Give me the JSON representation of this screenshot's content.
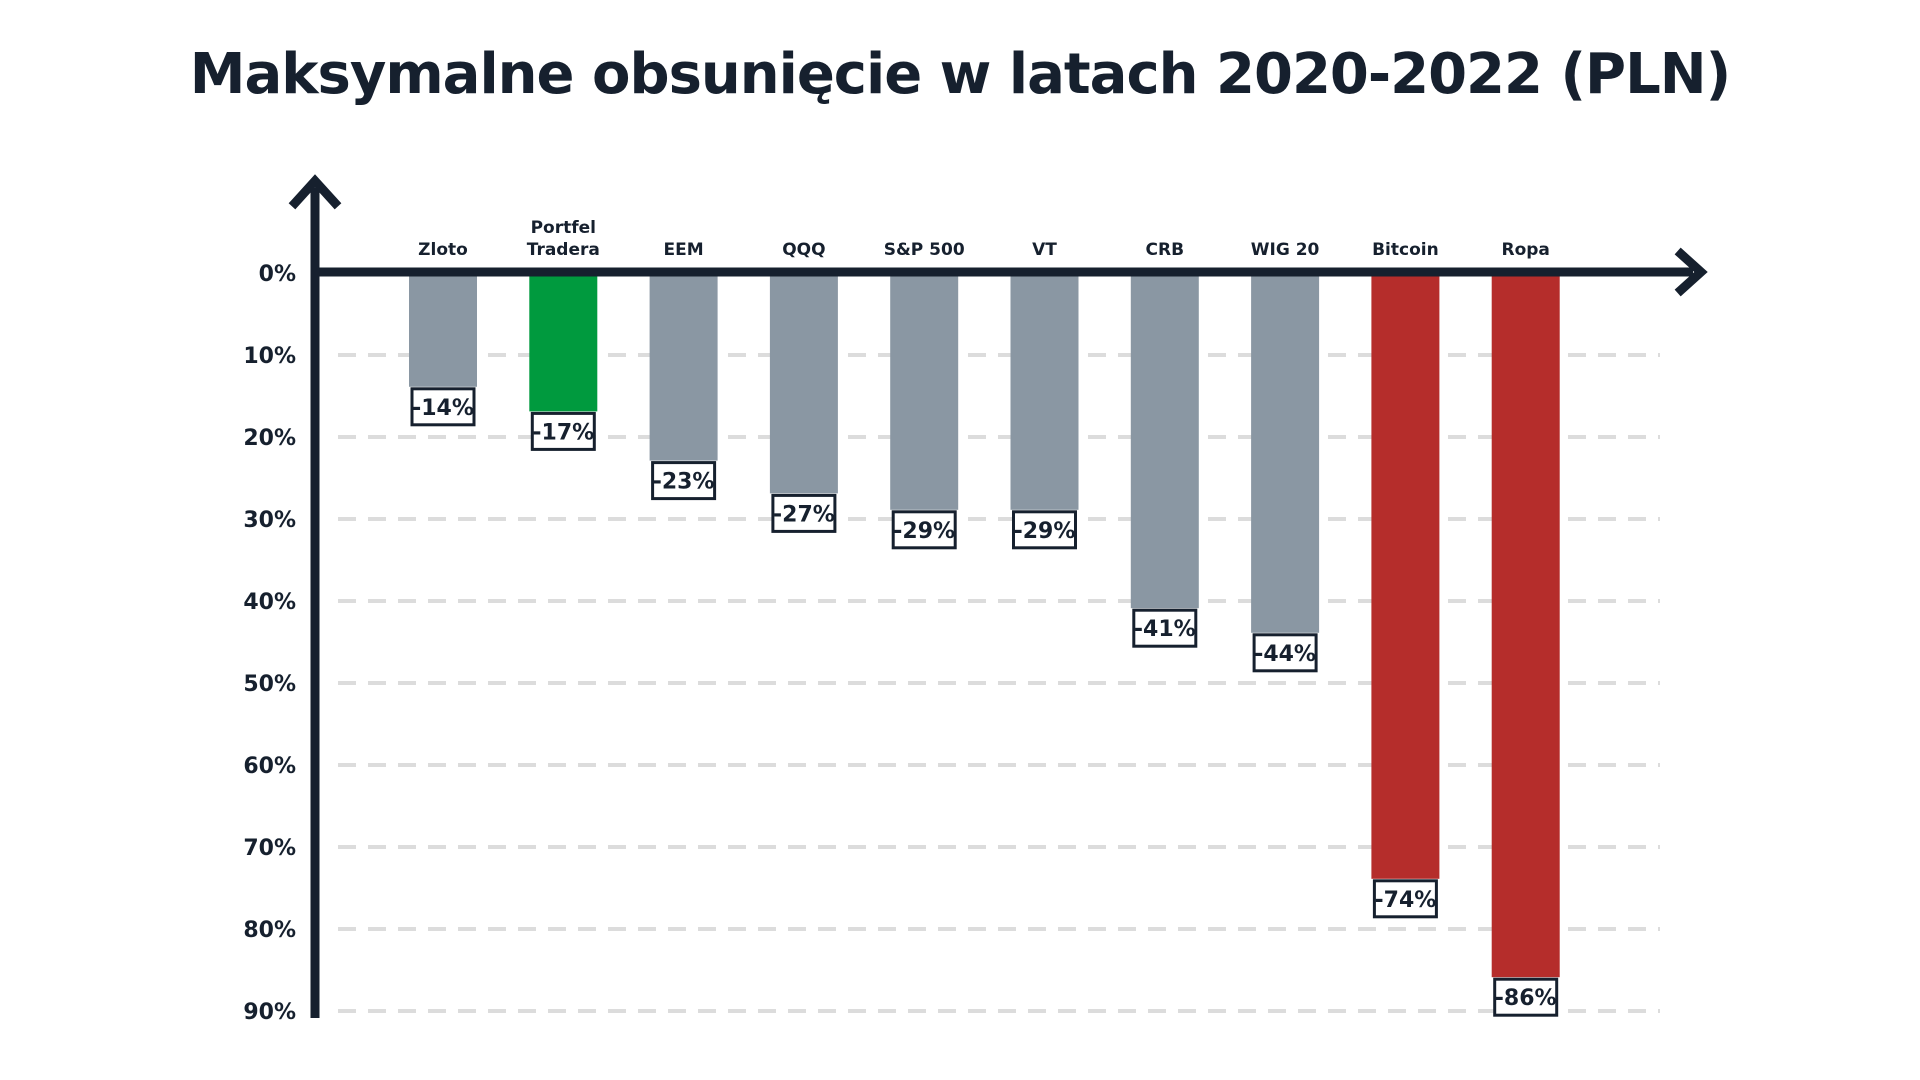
{
  "chart_data": {
    "type": "bar",
    "title": "Maksymalne obsunięcie w latach 2020-2022 (PLN)",
    "xlabel": "",
    "ylabel": "",
    "categories": [
      "Zloto",
      "Portfel\nTradera",
      "EEM",
      "QQQ",
      "S&P 500",
      "VT",
      "CRB",
      "WIG 20",
      "Bitcoin",
      "Ropa"
    ],
    "values": [
      -14,
      -17,
      -23,
      -27,
      -29,
      -29,
      -41,
      -44,
      -74,
      -86
    ],
    "value_labels": [
      "-14%",
      "-17%",
      "-23%",
      "-27%",
      "-29%",
      "-29%",
      "-41%",
      "-44%",
      "-74%",
      "-86%"
    ],
    "bar_colors": [
      "#8a97a3",
      "#009a3e",
      "#8a97a3",
      "#8a97a3",
      "#8a97a3",
      "#8a97a3",
      "#8a97a3",
      "#8a97a3",
      "#b52d2b",
      "#b52d2b"
    ],
    "y_tick_labels": [
      "0%",
      "10%",
      "20%",
      "30%",
      "40%",
      "50%",
      "60%",
      "70%",
      "80%",
      "90%"
    ],
    "y_tick_values": [
      0,
      10,
      20,
      30,
      40,
      50,
      60,
      70,
      80,
      90
    ],
    "ylim": [
      0,
      90
    ],
    "y_inverted": true,
    "grid": "dashed-horizontal",
    "legend": "none",
    "colors": {
      "axis": "#16202e",
      "grid": "#dcdcdc",
      "text": "#16202e"
    }
  }
}
